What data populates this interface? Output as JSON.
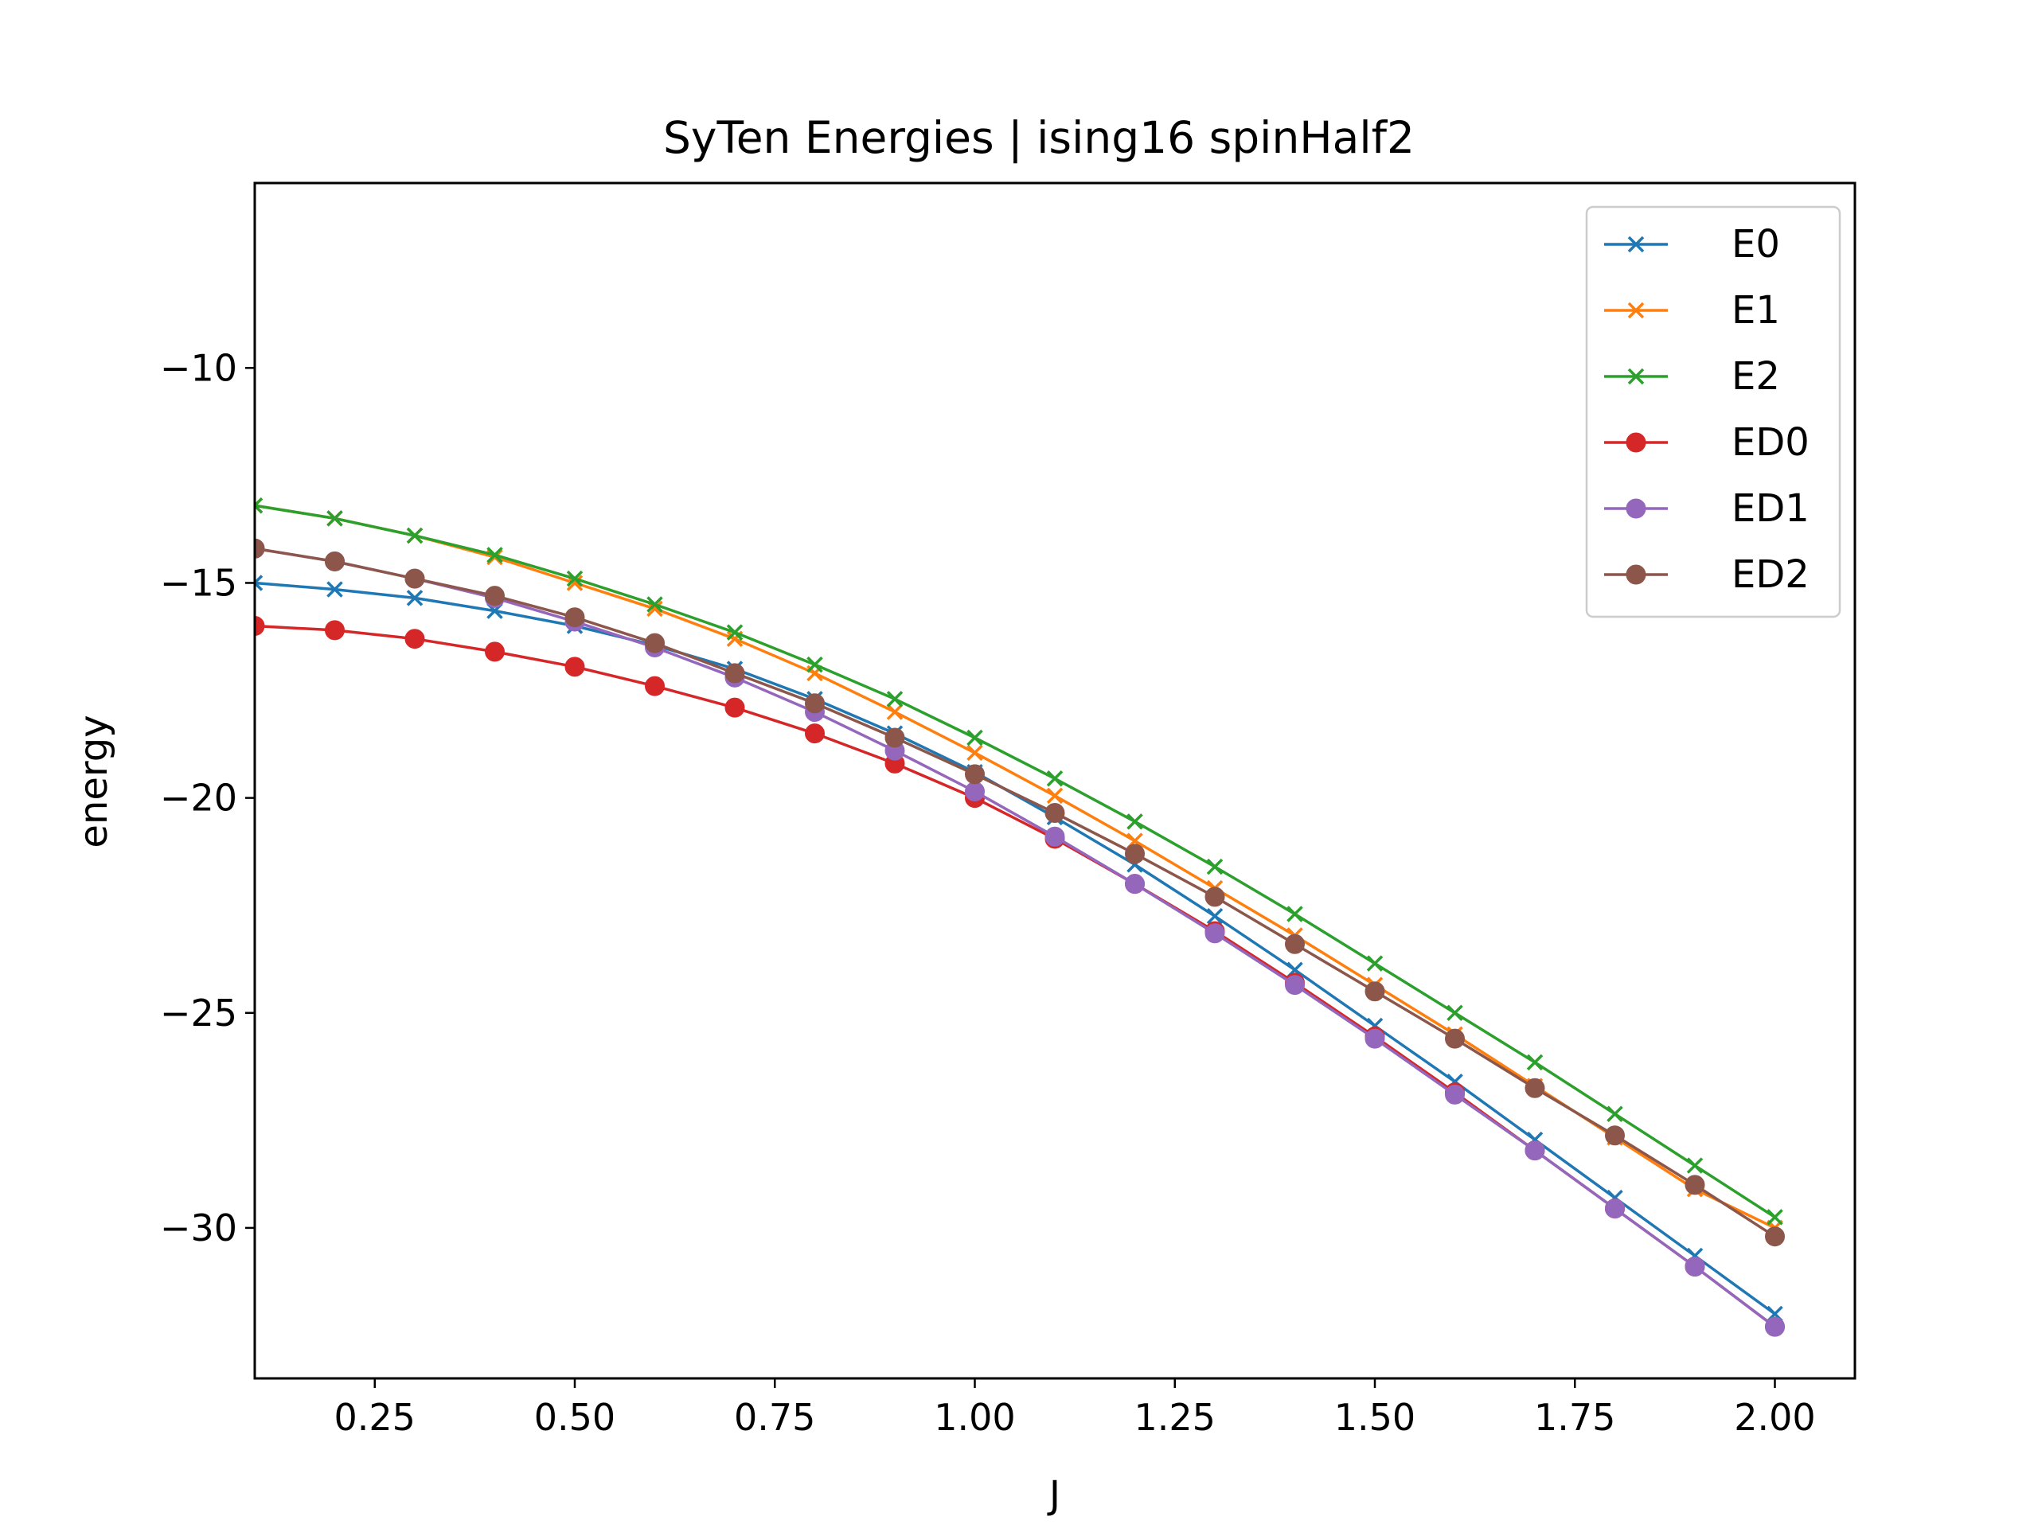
{
  "chart_data": {
    "type": "line",
    "title": "SyTen Energies | ising16 spinHalf2",
    "xlabel": "J",
    "ylabel": "energy",
    "xlim": [
      0.1,
      2.1
    ],
    "ylim": [
      -33.5,
      -5.7
    ],
    "xticks": [
      0.25,
      0.5,
      0.75,
      1.0,
      1.25,
      1.5,
      1.75,
      2.0
    ],
    "xtick_labels": [
      "0.25",
      "0.50",
      "0.75",
      "1.00",
      "1.25",
      "1.50",
      "1.75",
      "2.00"
    ],
    "yticks": [
      -10,
      -15,
      -20,
      -25,
      -30
    ],
    "ytick_labels": [
      "−10",
      "−15",
      "−20",
      "−25",
      "−30"
    ],
    "grid": false,
    "legend_position": "upper right",
    "x": [
      0.1,
      0.2,
      0.3,
      0.4,
      0.5,
      0.6,
      0.7,
      0.8,
      0.9,
      1.0,
      1.1,
      1.2,
      1.3,
      1.4,
      1.5,
      1.6,
      1.7,
      1.8,
      1.9,
      2.0
    ],
    "series": [
      {
        "name": "E0",
        "color": "#1f77b4",
        "marker": "x",
        "values": [
          -15.0,
          -15.15,
          -15.35,
          -15.65,
          -16.0,
          -16.45,
          -17.0,
          -17.7,
          -18.5,
          -19.4,
          -20.45,
          -21.55,
          -22.75,
          -24.0,
          -25.3,
          -26.6,
          -27.95,
          -29.3,
          -30.65,
          -32.0
        ]
      },
      {
        "name": "E1",
        "color": "#ff7f0e",
        "marker": "x",
        "values": [
          -13.2,
          -13.5,
          -13.9,
          -14.4,
          -15.0,
          -15.6,
          -16.3,
          -17.1,
          -18.0,
          -18.95,
          -19.95,
          -21.0,
          -22.1,
          -23.2,
          -24.35,
          -25.5,
          -26.7,
          -27.9,
          -29.1,
          -30.0
        ]
      },
      {
        "name": "E2",
        "color": "#2ca02c",
        "marker": "x",
        "values": [
          -13.2,
          -13.5,
          -13.9,
          -14.35,
          -14.9,
          -15.5,
          -16.15,
          -16.9,
          -17.7,
          -18.6,
          -19.55,
          -20.55,
          -21.6,
          -22.7,
          -23.85,
          -25.0,
          -26.15,
          -27.35,
          -28.55,
          -29.75
        ]
      },
      {
        "name": "ED0",
        "color": "#d62728",
        "marker": "o",
        "values": [
          -16.0,
          -16.1,
          -16.3,
          -16.6,
          -16.95,
          -17.4,
          -17.9,
          -18.5,
          -19.2,
          -20.0,
          -20.95,
          -22.0,
          -23.1,
          -24.3,
          -25.55,
          -26.85,
          -28.2,
          -29.55,
          -30.9,
          -32.3
        ]
      },
      {
        "name": "ED1",
        "color": "#9467bd",
        "marker": "o",
        "values": [
          -14.2,
          -14.5,
          -14.9,
          -15.35,
          -15.9,
          -16.5,
          -17.2,
          -18.0,
          -18.9,
          -19.85,
          -20.9,
          -22.0,
          -23.15,
          -24.35,
          -25.6,
          -26.9,
          -28.2,
          -29.55,
          -30.9,
          -32.3
        ]
      },
      {
        "name": "ED2",
        "color": "#8c564b",
        "marker": "o",
        "values": [
          -14.2,
          -14.5,
          -14.9,
          -15.3,
          -15.8,
          -16.4,
          -17.1,
          -17.8,
          -18.6,
          -19.45,
          -20.35,
          -21.3,
          -22.3,
          -23.4,
          -24.5,
          -25.6,
          -26.75,
          -27.85,
          -29.0,
          -30.2
        ]
      }
    ]
  }
}
